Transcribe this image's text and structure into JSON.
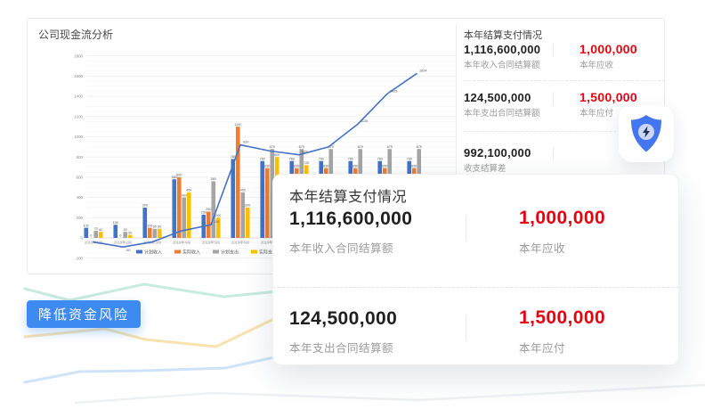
{
  "colors": {
    "accent_red": "#e60012",
    "badge_blue": "#3d8bf0",
    "shield_blue": "#4476f2",
    "shield_circle": "#ccd6f6",
    "shield_bolt": "#232f52"
  },
  "chart_card": {
    "title": "公司现金流分析"
  },
  "chart_data": {
    "type": "bar",
    "title": "公司现金流分析",
    "categories": [
      "2019年1月",
      "2019年2月",
      "2019年3月",
      "2019年4月",
      "2019年5月",
      "2019年6月",
      "2019年7月",
      "2019年8月",
      "2019年9月",
      "2019年10月",
      "2019年11月",
      "2019年12月"
    ],
    "series": [
      {
        "name": "计划收入",
        "type": "bar",
        "color": "#4472c4",
        "values": [
          100,
          130,
          300,
          580,
          230,
          780,
          760,
          760,
          760,
          760,
          760,
          760
        ]
      },
      {
        "name": "实际收入",
        "type": "bar",
        "color": "#ed7d31",
        "values": [
          0,
          0,
          100,
          600,
          260,
          1100,
          690,
          690,
          690,
          690,
          690,
          690
        ]
      },
      {
        "name": "计划支出",
        "type": "bar",
        "color": "#a5a5a5",
        "values": [
          70,
          60,
          90,
          400,
          560,
          450,
          879,
          879,
          879,
          879,
          879,
          879
        ]
      },
      {
        "name": "实际支出",
        "type": "bar",
        "color": "#ffc000",
        "values": [
          60,
          30,
          90,
          450,
          200,
          300,
          800,
          720,
          null,
          null,
          null,
          null
        ]
      },
      {
        "name": "",
        "type": "line",
        "color": "#4472c4",
        "values": [
          -40,
          -90,
          -40,
          70,
          130,
          920,
          860,
          822,
          900,
          1126,
          1425,
          1624
        ]
      }
    ],
    "line_label_indices": [
      1,
      4,
      5,
      7,
      9,
      10,
      11
    ],
    "ylim": [
      -200,
      1800
    ],
    "ytick_step": 200,
    "grid": true,
    "legend_position": "bottom"
  },
  "summary_panel": {
    "title": "本年结算支付情况",
    "rows": [
      {
        "left_value": "1,116,600,000",
        "left_label": "本年收入合同结算额",
        "right_value": "1,000,000",
        "right_label": "本年应收"
      },
      {
        "left_value": "124,500,000",
        "left_label": "本年支出合同结算额",
        "right_value": "1,500,000",
        "right_label": "本年应付"
      },
      {
        "left_value": "992,100,000",
        "left_label": "收支结算差"
      }
    ]
  },
  "popup": {
    "title": "本年结算支付情况",
    "rows": [
      {
        "left_value": "1,116,600,000",
        "left_label": "本年收入合同结算额",
        "right_value": "1,000,000",
        "right_label": "本年应收"
      },
      {
        "left_value": "124,500,000",
        "left_label": "本年支出合同结算额",
        "right_value": "1,500,000",
        "right_label": "本年应付"
      }
    ]
  },
  "badge": {
    "label": "降低资金风险"
  }
}
